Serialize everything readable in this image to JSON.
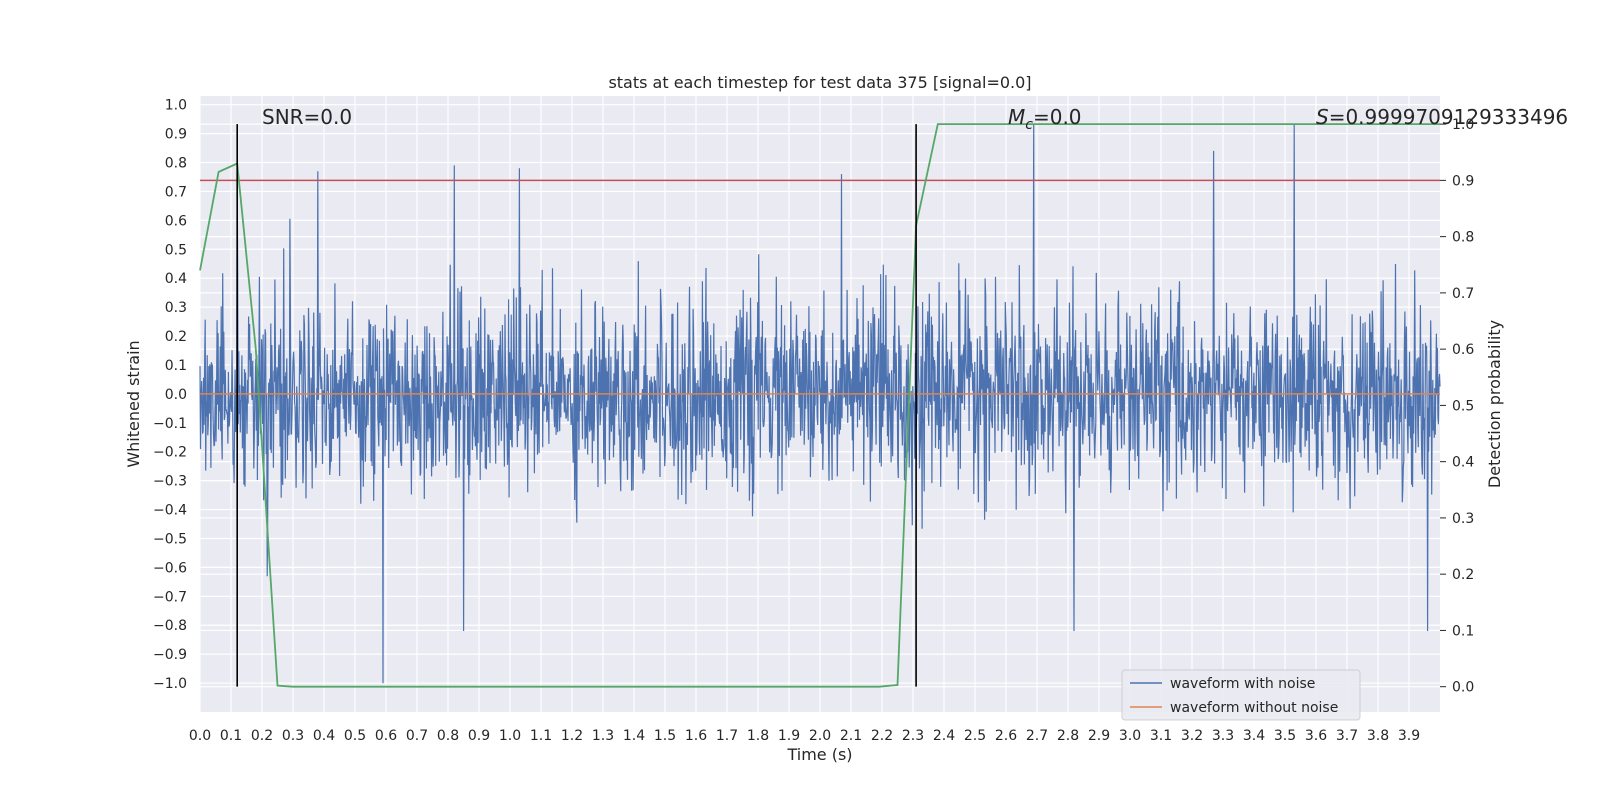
{
  "chart_data": {
    "type": "line",
    "title": "stats at each timestep for test data 375 [signal=0.0]",
    "xlabel": "Time (s)",
    "ylabel": "Whitened strain",
    "ylabel_right": "Detection probability",
    "xlim": [
      0.0,
      4.0
    ],
    "ylim": [
      -1.1,
      1.03
    ],
    "ylim_right": [
      -0.045,
      1.05
    ],
    "x_ticks": [
      "0.0",
      "0.1",
      "0.2",
      "0.3",
      "0.4",
      "0.5",
      "0.6",
      "0.7",
      "0.8",
      "0.9",
      "1.0",
      "1.1",
      "1.2",
      "1.3",
      "1.4",
      "1.5",
      "1.6",
      "1.7",
      "1.8",
      "1.9",
      "2.0",
      "2.1",
      "2.2",
      "2.3",
      "2.4",
      "2.5",
      "2.6",
      "2.7",
      "2.8",
      "2.9",
      "3.0",
      "3.1",
      "3.2",
      "3.3",
      "3.4",
      "3.5",
      "3.6",
      "3.7",
      "3.8",
      "3.9"
    ],
    "y_ticks": [
      "1.0",
      "0.9",
      "0.8",
      "0.7",
      "0.6",
      "0.5",
      "0.4",
      "0.3",
      "0.2",
      "0.1",
      "0.0",
      "−0.1",
      "−0.2",
      "−0.3",
      "−0.4",
      "−0.5",
      "−0.6",
      "−0.7",
      "−0.8",
      "−0.9",
      "−1.0"
    ],
    "y_ticks_right": [
      "1.0",
      "0.9",
      "0.8",
      "0.7",
      "0.6",
      "0.5",
      "0.4",
      "0.3",
      "0.2",
      "0.1",
      "0.0"
    ],
    "annotations": {
      "snr": "SNR=0.0",
      "mc_symbol": "M",
      "mc_sub": "c",
      "mc_value": "=0.0",
      "s_symbol": "S",
      "s_value": "=0.9999709129333496"
    },
    "legend": {
      "placement": "lower-right",
      "entries": [
        "waveform with noise",
        "waveform without noise"
      ]
    },
    "colors": {
      "noise": "#4c72b0",
      "clean": "#dd8452",
      "probability": "#55a868",
      "threshold": "#c44e52",
      "markers": "#000000",
      "background": "#eaeaf2"
    },
    "series": [
      {
        "name": "waveform with noise",
        "noise_std": 0.16,
        "spikes": [
          {
            "x": 0.12,
            "y": 0.76
          },
          {
            "x": 0.38,
            "y": 0.77
          },
          {
            "x": 0.59,
            "y": -1.0
          },
          {
            "x": 0.82,
            "y": 0.79
          },
          {
            "x": 0.85,
            "y": -0.82
          },
          {
            "x": 1.03,
            "y": 0.78
          },
          {
            "x": 2.07,
            "y": 0.76
          },
          {
            "x": 2.69,
            "y": 0.93
          },
          {
            "x": 2.82,
            "y": -0.82
          },
          {
            "x": 3.27,
            "y": 0.84
          },
          {
            "x": 3.53,
            "y": 0.93
          },
          {
            "x": 3.96,
            "y": -0.82
          }
        ]
      },
      {
        "name": "waveform without noise",
        "x": [
          0.0,
          4.0
        ],
        "y": [
          0.0,
          0.0
        ]
      },
      {
        "name": "detection probability",
        "axis": "right",
        "x": [
          0.0,
          0.06,
          0.12,
          0.18,
          0.25,
          0.3,
          0.36,
          2.19,
          2.25,
          2.31,
          2.38,
          4.0
        ],
        "y": [
          0.74,
          0.915,
          0.93,
          0.6,
          0.002,
          0.0,
          0.0,
          0.0,
          0.003,
          0.82,
          1.0,
          1.0
        ]
      }
    ],
    "threshold_line": {
      "axis": "right",
      "y": 0.9
    },
    "markers_x": [
      0.12,
      2.31
    ]
  }
}
